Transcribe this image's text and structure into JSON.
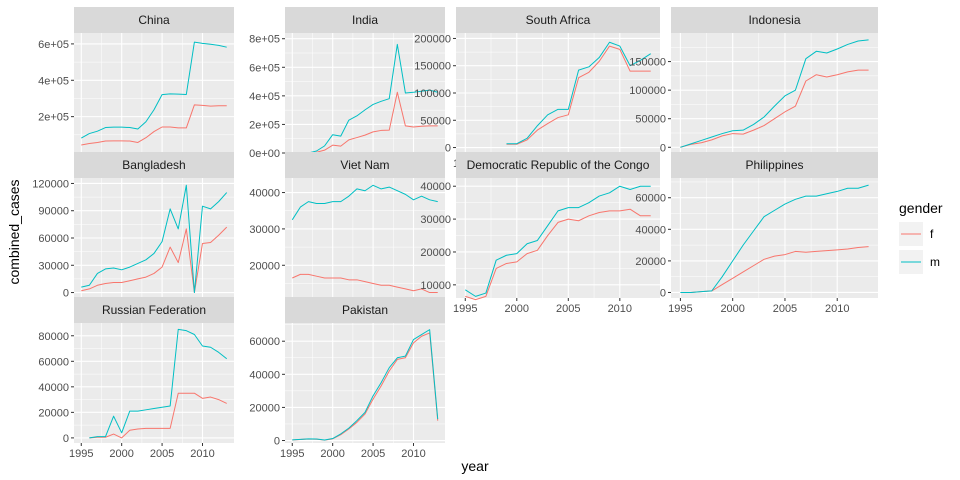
{
  "chart_data": {
    "type": "line",
    "xlabel": "year",
    "ylabel": "combined_cases",
    "colors": {
      "f": "#F8766D",
      "m": "#00BFC4",
      "panel": "#EBEBEB",
      "strip": "#D9D9D9",
      "grid": "#FFFFFF"
    },
    "legend": {
      "title": "gender",
      "placement": "right",
      "entries": [
        {
          "key": "f",
          "label": "f"
        },
        {
          "key": "m",
          "label": "m"
        }
      ]
    },
    "xlim": [
      1994.1,
      2013.9
    ],
    "xticks": [
      1995,
      2000,
      2005,
      2010
    ],
    "xtick_labels": [
      "1995",
      "2000",
      "2005",
      "2010"
    ],
    "panels": [
      {
        "title": "China",
        "ylim": [
          0,
          660000
        ],
        "yticks": [
          200000,
          400000,
          600000
        ],
        "ytick_labels": [
          "2e+05",
          "4e+05",
          "6e+05"
        ],
        "x": [
          1995,
          1996,
          1997,
          1998,
          1999,
          2000,
          2001,
          2002,
          2003,
          2004,
          2005,
          2006,
          2007,
          2008,
          2009,
          2010,
          2011,
          2012,
          2013
        ],
        "series": [
          {
            "key": "f",
            "values": [
              44000,
              52000,
              58000,
              66000,
              67000,
              67000,
              66000,
              58000,
              84000,
              118000,
              143000,
              143000,
              138000,
              138000,
              265000,
              262000,
              258000,
              260000,
              260000
            ]
          },
          {
            "key": "m",
            "values": [
              82000,
              107000,
              120000,
              140000,
              142000,
              142000,
              140000,
              132000,
              172000,
              238000,
              321000,
              325000,
              324000,
              322000,
              610000,
              603000,
              598000,
              592000,
              582000
            ]
          }
        ]
      },
      {
        "title": "India",
        "ylim": [
          0,
          840000
        ],
        "yticks": [
          0,
          200000,
          400000,
          600000,
          800000
        ],
        "ytick_labels": [
          "0e+00",
          "2e+05",
          "4e+05",
          "6e+05",
          "8e+05"
        ],
        "x": [
          1995,
          1996,
          1997,
          1998,
          1999,
          2000,
          2001,
          2002,
          2003,
          2004,
          2005,
          2006,
          2007,
          2008,
          2009,
          2010,
          2011,
          2012,
          2013
        ],
        "series": [
          {
            "key": "f",
            "values": [
              0,
              0,
              0,
              5000,
              20000,
              55000,
              48000,
              92000,
              108000,
              125000,
              148000,
              158000,
              160000,
              425000,
              190000,
              182000,
              187000,
              190000,
              190000
            ]
          },
          {
            "key": "m",
            "values": [
              0,
              0,
              0,
              14000,
              50000,
              128000,
              118000,
              230000,
              260000,
              302000,
              340000,
              362000,
              380000,
              760000,
              420000,
              425000,
              432000,
              440000,
              425000
            ]
          }
        ]
      },
      {
        "title": "South Africa",
        "ylim": [
          -10000,
          210000
        ],
        "yticks": [
          0,
          50000,
          100000,
          150000,
          200000
        ],
        "ytick_labels": [
          "0",
          "50000",
          "100000",
          "150000",
          "200000"
        ],
        "x": [
          1999,
          2000,
          2001,
          2002,
          2003,
          2004,
          2005,
          2006,
          2007,
          2008,
          2009,
          2010,
          2011,
          2012,
          2013
        ],
        "series": [
          {
            "key": "f",
            "values": [
              6000,
              6000,
              14000,
              32000,
              44000,
              55000,
              60000,
              128000,
              138000,
              158000,
              186000,
              180000,
              140000,
              140000,
              140000
            ]
          },
          {
            "key": "m",
            "values": [
              7000,
              7000,
              17000,
              40000,
              60000,
              70000,
              70000,
              142000,
              148000,
              165000,
              193000,
              186000,
              150000,
              160000,
              172000
            ]
          }
        ]
      },
      {
        "title": "Indonesia",
        "ylim": [
          -10000,
          200000
        ],
        "yticks": [
          0,
          50000,
          100000,
          150000
        ],
        "ytick_labels": [
          "0",
          "50000",
          "100000",
          "150000"
        ],
        "x": [
          1995,
          1996,
          1997,
          1998,
          1999,
          2000,
          2001,
          2002,
          2003,
          2004,
          2005,
          2006,
          2007,
          2008,
          2009,
          2010,
          2011,
          2012,
          2013
        ],
        "series": [
          {
            "key": "f",
            "values": [
              0,
              5000,
              8000,
              13000,
              20000,
              24000,
              23000,
              30000,
              38000,
              50000,
              62000,
              72000,
              116000,
              127000,
              123000,
              127000,
              132000,
              135000,
              135000
            ]
          },
          {
            "key": "m",
            "values": [
              0,
              6000,
              12000,
              18000,
              24000,
              29000,
              30000,
              40000,
              53000,
              72000,
              90000,
              100000,
              155000,
              168000,
              165000,
              172000,
              180000,
              186000,
              188000
            ]
          }
        ]
      },
      {
        "title": "Bangladesh",
        "ylim": [
          -6000,
          126000
        ],
        "yticks": [
          0,
          30000,
          60000,
          90000,
          120000
        ],
        "ytick_labels": [
          "0",
          "30000",
          "60000",
          "90000",
          "120000"
        ],
        "x": [
          1995,
          1996,
          1997,
          1998,
          1999,
          2000,
          2001,
          2002,
          2003,
          2004,
          2005,
          2006,
          2007,
          2008,
          2009,
          2010,
          2011,
          2012,
          2013
        ],
        "series": [
          {
            "key": "f",
            "values": [
              2000,
              4000,
              8000,
              10000,
              11000,
              11000,
              13000,
              15000,
              17000,
              21000,
              28000,
              50000,
              33000,
              70000,
              0,
              54000,
              55000,
              63000,
              72000
            ]
          },
          {
            "key": "m",
            "values": [
              6000,
              8000,
              21000,
              26000,
              27000,
              25000,
              28000,
              32000,
              36000,
              43000,
              56000,
              92000,
              70000,
              118000,
              0,
              95000,
              92000,
              100000,
              110000
            ]
          }
        ]
      },
      {
        "title": "Viet Nam",
        "ylim": [
          11000,
          44000
        ],
        "yticks": [
          20000,
          30000,
          40000
        ],
        "ytick_labels": [
          "20000",
          "30000",
          "40000"
        ],
        "x": [
          1995,
          1996,
          1997,
          1998,
          1999,
          2000,
          2001,
          2002,
          2003,
          2004,
          2005,
          2006,
          2007,
          2008,
          2009,
          2010,
          2011,
          2012,
          2013
        ],
        "series": [
          {
            "key": "f",
            "values": [
              16500,
              17500,
              17500,
              17000,
              16500,
              16500,
              16500,
              16000,
              16000,
              15500,
              15000,
              14500,
              14500,
              14000,
              13500,
              13000,
              13500,
              12500,
              12500
            ]
          },
          {
            "key": "m",
            "values": [
              32500,
              36000,
              37500,
              37000,
              37000,
              37500,
              37500,
              39000,
              41000,
              40500,
              42000,
              41000,
              41500,
              40500,
              39500,
              38000,
              39000,
              38000,
              37500
            ]
          }
        ]
      },
      {
        "title": "Democratic Republic of the Congo",
        "ylim": [
          6000,
          42500
        ],
        "yticks": [
          10000,
          20000,
          30000,
          40000
        ],
        "ytick_labels": [
          "10000",
          "20000",
          "30000",
          "40000"
        ],
        "x": [
          1995,
          1996,
          1997,
          1998,
          1999,
          2000,
          2001,
          2002,
          2003,
          2004,
          2005,
          2006,
          2007,
          2008,
          2009,
          2010,
          2011,
          2012,
          2013
        ],
        "series": [
          {
            "key": "f",
            "values": [
              6500,
              5500,
              6500,
              15000,
              16500,
              17000,
              19500,
              20500,
              25000,
              29000,
              30000,
              29500,
              31000,
              32000,
              32500,
              32500,
              33000,
              31000,
              31000
            ]
          },
          {
            "key": "m",
            "values": [
              8500,
              6500,
              7500,
              17500,
              19000,
              19500,
              22500,
              23500,
              28000,
              32500,
              33500,
              33500,
              35000,
              37000,
              38000,
              40000,
              39000,
              40000,
              40000
            ]
          }
        ]
      },
      {
        "title": "Philippines",
        "ylim": [
          -3500,
          72500
        ],
        "yticks": [
          0,
          20000,
          40000,
          60000
        ],
        "ytick_labels": [
          "0",
          "20000",
          "40000",
          "60000"
        ],
        "x": [
          1995,
          1996,
          1997,
          1998,
          1999,
          2000,
          2001,
          2002,
          2003,
          2004,
          2005,
          2006,
          2007,
          2008,
          2009,
          2010,
          2011,
          2012,
          2013
        ],
        "series": [
          {
            "key": "f",
            "values": [
              0,
              0,
              500,
              1000,
              5000,
              9000,
              13000,
              17000,
              21000,
              23000,
              24000,
              26000,
              25500,
              26000,
              26500,
              27000,
              27500,
              28500,
              29000
            ]
          },
          {
            "key": "m",
            "values": [
              0,
              0,
              500,
              1000,
              10000,
              20000,
              30000,
              39000,
              48000,
              52000,
              56000,
              59000,
              61000,
              61000,
              62500,
              64000,
              66000,
              66000,
              68000
            ]
          }
        ]
      },
      {
        "title": "Russian Federation",
        "ylim": [
          -4000,
          90000
        ],
        "yticks": [
          0,
          20000,
          40000,
          60000,
          80000
        ],
        "ytick_labels": [
          "0",
          "20000",
          "40000",
          "60000",
          "80000"
        ],
        "x": [
          1996,
          1997,
          1998,
          1999,
          2000,
          2001,
          2002,
          2003,
          2004,
          2005,
          2006,
          2007,
          2008,
          2009,
          2010,
          2011,
          2012,
          2013
        ],
        "series": [
          {
            "key": "f",
            "values": [
              0,
              500,
              500,
              3000,
              0,
              6000,
              7000,
              7500,
              7500,
              7500,
              7500,
              35000,
              35000,
              35000,
              31000,
              32000,
              30000,
              27000
            ]
          },
          {
            "key": "m",
            "values": [
              0,
              1000,
              1000,
              17000,
              4000,
              21000,
              21000,
              22000,
              23000,
              24000,
              25000,
              85000,
              84000,
              81000,
              72000,
              71000,
              67000,
              62000
            ]
          }
        ]
      },
      {
        "title": "Pakistan",
        "ylim": [
          -1500,
          71000
        ],
        "yticks": [
          0,
          20000,
          40000,
          60000
        ],
        "ytick_labels": [
          "0",
          "20000",
          "40000",
          "60000"
        ],
        "x": [
          1995,
          1996,
          1997,
          1998,
          1999,
          2000,
          2001,
          2002,
          2003,
          2004,
          2005,
          2006,
          2007,
          2008,
          2009,
          2010,
          2011,
          2012,
          2013
        ],
        "series": [
          {
            "key": "f",
            "values": [
              300,
              600,
              900,
              800,
              200,
              1000,
              3500,
              7000,
              11000,
              16000,
              25000,
              33000,
              42000,
              49000,
              50000,
              59000,
              63000,
              65000,
              12000
            ]
          },
          {
            "key": "m",
            "values": [
              400,
              700,
              1000,
              900,
              300,
              1200,
              4000,
              7500,
              12000,
              17000,
              27000,
              35000,
              44000,
              50000,
              51000,
              61000,
              64000,
              67000,
              13000
            ]
          }
        ]
      }
    ]
  }
}
